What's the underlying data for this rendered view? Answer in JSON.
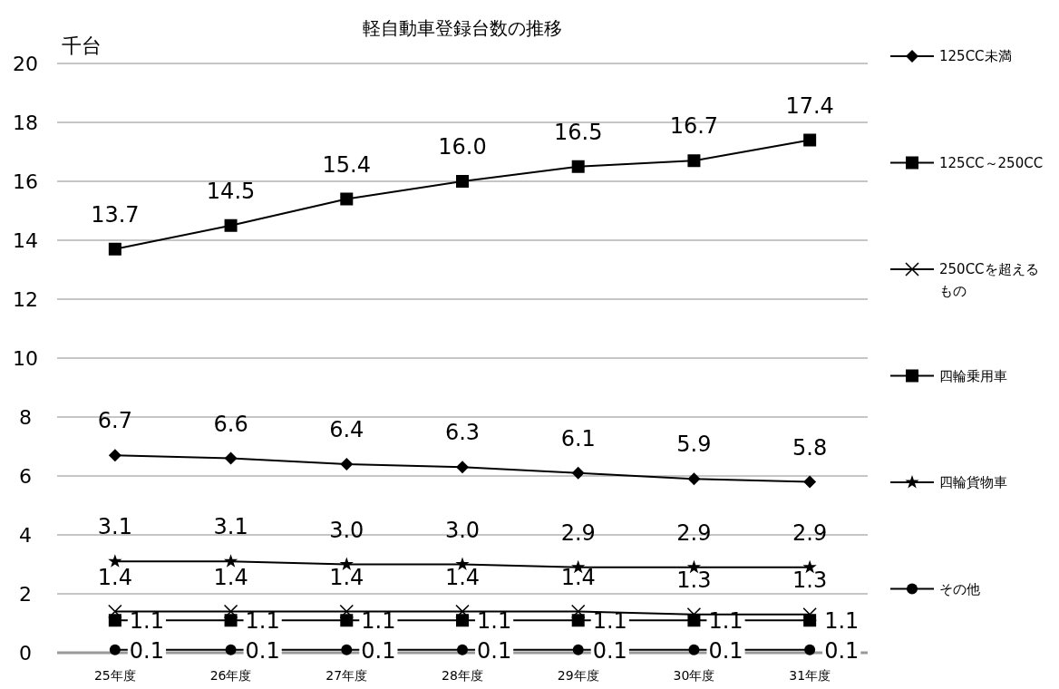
{
  "chart_data": {
    "type": "line",
    "title": "軽自動車登録台数の推移",
    "ylabel": "千台",
    "categories": [
      "25年度",
      "26年度",
      "27年度",
      "28年度",
      "29年度",
      "30年度",
      "31年度"
    ],
    "ylim": [
      0,
      20
    ],
    "yticks": [
      0,
      2,
      4,
      6,
      8,
      10,
      12,
      14,
      16,
      18,
      20
    ],
    "grid": "y",
    "legend": "right",
    "line_style": "solid",
    "series": [
      {
        "name": "125CC未満",
        "color": "#000000",
        "marker": "diamond",
        "values": [
          6.7,
          6.6,
          6.4,
          6.3,
          6.1,
          5.9,
          5.8
        ],
        "value_labels": [
          "6.7",
          "6.6",
          "6.4",
          "6.3",
          "6.1",
          "5.9",
          "5.8"
        ]
      },
      {
        "name": "125CC～250CC",
        "color": "#000000",
        "marker": "square",
        "values": [
          1.1,
          1.1,
          1.1,
          1.1,
          1.1,
          1.1,
          1.1
        ],
        "value_labels": [
          "1.1",
          "1.1",
          "1.1",
          "1.1",
          "1.1",
          "1.1",
          "1.1"
        ]
      },
      {
        "name": "250CCを超えるもの",
        "color": "#000000",
        "marker": "cross",
        "values": [
          1.4,
          1.4,
          1.4,
          1.4,
          1.4,
          1.3,
          1.3
        ],
        "value_labels": [
          "1.4",
          "1.4",
          "1.4",
          "1.4",
          "1.4",
          "1.3",
          "1.3"
        ]
      },
      {
        "name": "四輪乗用車",
        "color": "#000000",
        "marker": "square",
        "values": [
          13.7,
          14.5,
          15.4,
          16.0,
          16.5,
          16.7,
          17.4
        ],
        "value_labels": [
          "13.7",
          "14.5",
          "15.4",
          "16.0",
          "16.5",
          "16.7",
          "17.4"
        ]
      },
      {
        "name": "四輪貨物車",
        "color": "#000000",
        "marker": "star",
        "values": [
          3.1,
          3.1,
          3.0,
          3.0,
          2.9,
          2.9,
          2.9
        ],
        "value_labels": [
          "3.1",
          "3.1",
          "3.0",
          "3.0",
          "2.9",
          "2.9",
          "2.9"
        ]
      },
      {
        "name": "その他",
        "color": "#000000",
        "marker": "circle",
        "values": [
          0.1,
          0.1,
          0.1,
          0.1,
          0.1,
          0.1,
          0.1
        ],
        "value_labels": [
          "0.1",
          "0.1",
          "0.1",
          "0.1",
          "0.1",
          "0.1",
          "0.1"
        ]
      }
    ]
  }
}
